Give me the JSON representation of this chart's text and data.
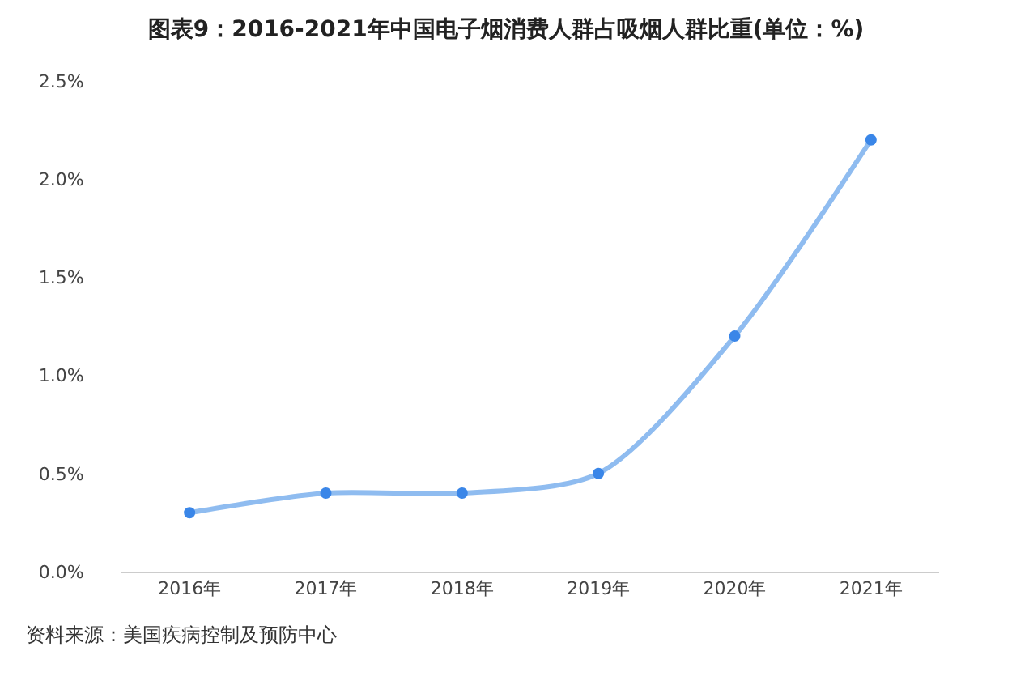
{
  "chart_data": {
    "type": "line",
    "title": "图表9：2016-2021年中国电子烟消费人群占吸烟人群比重(单位：%)",
    "categories": [
      "2016年",
      "2017年",
      "2018年",
      "2019年",
      "2020年",
      "2021年"
    ],
    "series": [
      {
        "color": "#8fbcf0",
        "values": [
          0.3,
          0.4,
          0.4,
          0.5,
          1.2,
          2.2
        ]
      }
    ],
    "marker": "circle",
    "grid": false,
    "legend": false,
    "ylim": [
      0,
      2.5
    ],
    "yticks": [
      {
        "value": 0,
        "label": "0.0%"
      },
      {
        "value": 0.5,
        "label": "0.5%"
      },
      {
        "value": 1,
        "label": "1.0%"
      },
      {
        "value": 1.5,
        "label": "1.5%"
      },
      {
        "value": 2,
        "label": "2.0%"
      },
      {
        "value": 2.5,
        "label": "2.5%"
      }
    ],
    "annotations": [
      "资料来源：美国疾病控制及预防中心"
    ]
  }
}
